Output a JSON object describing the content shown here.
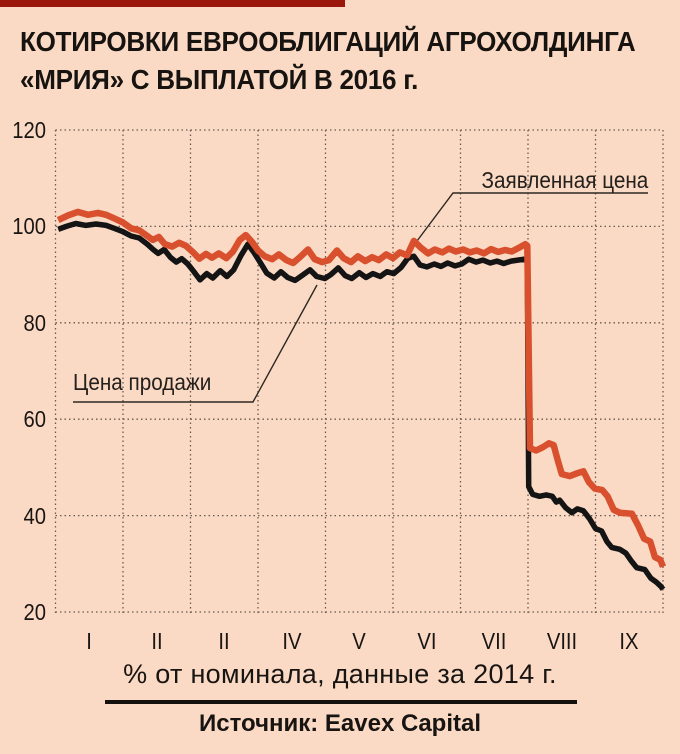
{
  "page": {
    "background_color": "#fbdac5",
    "accent_stripe_color": "#9b170c"
  },
  "header": {
    "title_lines": [
      "КОТИРОВКИ ЕВРООБЛИГАЦИЙ АГРОХОЛДИНГА",
      "«МРИЯ» С ВЫПЛАТОЙ В 2016 г."
    ]
  },
  "chart_data": {
    "type": "line",
    "title": "КОТИРОВКИ ЕВРООБЛИГАЦИЙ АГРОХОЛДИНГА «МРИЯ» С ВЫПЛАТОЙ В 2016 г.",
    "xlabel": "",
    "ylabel": "% от номинала",
    "ylim": [
      20,
      120
    ],
    "yticks": [
      120,
      100,
      80,
      60,
      40,
      20
    ],
    "xticks": [
      "I",
      "II",
      "II",
      "IV",
      "V",
      "VI",
      "VII",
      "VIII",
      "IX"
    ],
    "grid": "dotted",
    "legend_position": "inline-callouts",
    "series": [
      {
        "name": "Заявленная цена",
        "color": "#d8502d",
        "points": [
          [
            1.04,
            101.3
          ],
          [
            1.19,
            102.3
          ],
          [
            1.33,
            103.0
          ],
          [
            1.48,
            102.4
          ],
          [
            1.63,
            102.8
          ],
          [
            1.75,
            102.4
          ],
          [
            1.88,
            101.6
          ],
          [
            2.0,
            100.8
          ],
          [
            2.12,
            99.6
          ],
          [
            2.24,
            99.2
          ],
          [
            2.36,
            98.0
          ],
          [
            2.44,
            97.2
          ],
          [
            2.53,
            97.8
          ],
          [
            2.62,
            96.3
          ],
          [
            2.73,
            95.8
          ],
          [
            2.83,
            96.6
          ],
          [
            2.93,
            96.0
          ],
          [
            3.04,
            94.6
          ],
          [
            3.13,
            93.3
          ],
          [
            3.23,
            94.3
          ],
          [
            3.32,
            93.5
          ],
          [
            3.42,
            94.4
          ],
          [
            3.53,
            93.4
          ],
          [
            3.63,
            94.8
          ],
          [
            3.73,
            97.2
          ],
          [
            3.82,
            98.2
          ],
          [
            3.91,
            96.8
          ],
          [
            4.0,
            95.0
          ],
          [
            4.1,
            93.8
          ],
          [
            4.21,
            93.2
          ],
          [
            4.31,
            94.2
          ],
          [
            4.42,
            93.0
          ],
          [
            4.52,
            92.4
          ],
          [
            4.62,
            93.6
          ],
          [
            4.74,
            95.2
          ],
          [
            4.84,
            93.2
          ],
          [
            4.95,
            92.6
          ],
          [
            5.05,
            93.0
          ],
          [
            5.17,
            95.0
          ],
          [
            5.27,
            93.4
          ],
          [
            5.38,
            92.6
          ],
          [
            5.48,
            93.8
          ],
          [
            5.59,
            92.8
          ],
          [
            5.69,
            93.6
          ],
          [
            5.79,
            93.0
          ],
          [
            5.9,
            94.2
          ],
          [
            6.0,
            93.4
          ],
          [
            6.1,
            94.6
          ],
          [
            6.21,
            94.0
          ],
          [
            6.31,
            97.0
          ],
          [
            6.41,
            95.6
          ],
          [
            6.52,
            94.4
          ],
          [
            6.62,
            95.2
          ],
          [
            6.73,
            94.6
          ],
          [
            6.83,
            95.4
          ],
          [
            6.93,
            94.8
          ],
          [
            7.04,
            95.2
          ],
          [
            7.14,
            94.6
          ],
          [
            7.24,
            95.0
          ],
          [
            7.35,
            94.4
          ],
          [
            7.45,
            95.3
          ],
          [
            7.56,
            94.7
          ],
          [
            7.66,
            95.1
          ],
          [
            7.76,
            94.8
          ],
          [
            7.87,
            95.6
          ],
          [
            7.96,
            96.3
          ],
          [
            7.99,
            96.0
          ],
          [
            8.03,
            54.0
          ],
          [
            8.12,
            53.5
          ],
          [
            8.22,
            54.2
          ],
          [
            8.31,
            55.0
          ],
          [
            8.38,
            54.6
          ],
          [
            8.44,
            51.5
          ],
          [
            8.5,
            48.6
          ],
          [
            8.62,
            48.2
          ],
          [
            8.73,
            48.8
          ],
          [
            8.82,
            49.2
          ],
          [
            8.9,
            47.0
          ],
          [
            8.99,
            45.6
          ],
          [
            9.1,
            45.3
          ],
          [
            9.18,
            44.0
          ],
          [
            9.27,
            41.2
          ],
          [
            9.36,
            40.6
          ],
          [
            9.54,
            40.4
          ],
          [
            9.63,
            38.0
          ],
          [
            9.72,
            35.2
          ],
          [
            9.81,
            34.6
          ],
          [
            9.88,
            31.4
          ],
          [
            9.96,
            30.8
          ],
          [
            10.0,
            29.4
          ]
        ]
      },
      {
        "name": "Цена продажи",
        "color": "#141414",
        "points": [
          [
            1.04,
            99.4
          ],
          [
            1.16,
            100.0
          ],
          [
            1.3,
            100.6
          ],
          [
            1.45,
            100.2
          ],
          [
            1.6,
            100.5
          ],
          [
            1.75,
            100.2
          ],
          [
            1.87,
            99.6
          ],
          [
            2.0,
            98.9
          ],
          [
            2.12,
            98.0
          ],
          [
            2.24,
            97.6
          ],
          [
            2.36,
            96.3
          ],
          [
            2.44,
            95.3
          ],
          [
            2.52,
            94.4
          ],
          [
            2.61,
            95.2
          ],
          [
            2.7,
            93.6
          ],
          [
            2.79,
            92.6
          ],
          [
            2.87,
            93.3
          ],
          [
            2.96,
            92.2
          ],
          [
            3.05,
            90.6
          ],
          [
            3.14,
            88.9
          ],
          [
            3.24,
            90.2
          ],
          [
            3.33,
            89.3
          ],
          [
            3.44,
            90.8
          ],
          [
            3.54,
            89.6
          ],
          [
            3.64,
            91.0
          ],
          [
            3.75,
            94.0
          ],
          [
            3.85,
            96.3
          ],
          [
            3.94,
            94.6
          ],
          [
            4.03,
            92.6
          ],
          [
            4.13,
            90.3
          ],
          [
            4.24,
            89.3
          ],
          [
            4.34,
            90.6
          ],
          [
            4.44,
            89.4
          ],
          [
            4.55,
            88.8
          ],
          [
            4.65,
            89.8
          ],
          [
            4.77,
            91.0
          ],
          [
            4.87,
            89.6
          ],
          [
            4.99,
            89.2
          ],
          [
            5.08,
            90.0
          ],
          [
            5.19,
            91.4
          ],
          [
            5.29,
            89.8
          ],
          [
            5.39,
            89.2
          ],
          [
            5.5,
            90.4
          ],
          [
            5.6,
            89.4
          ],
          [
            5.7,
            90.2
          ],
          [
            5.81,
            89.6
          ],
          [
            5.91,
            90.6
          ],
          [
            6.01,
            90.2
          ],
          [
            6.12,
            91.5
          ],
          [
            6.22,
            93.4
          ],
          [
            6.31,
            93.8
          ],
          [
            6.4,
            92.0
          ],
          [
            6.5,
            91.6
          ],
          [
            6.61,
            92.2
          ],
          [
            6.71,
            91.7
          ],
          [
            6.81,
            92.4
          ],
          [
            6.92,
            91.8
          ],
          [
            7.02,
            92.2
          ],
          [
            7.12,
            93.2
          ],
          [
            7.23,
            92.6
          ],
          [
            7.33,
            93.0
          ],
          [
            7.44,
            92.4
          ],
          [
            7.54,
            92.8
          ],
          [
            7.64,
            92.3
          ],
          [
            7.75,
            92.8
          ],
          [
            7.85,
            93.0
          ],
          [
            7.94,
            93.2
          ],
          [
            7.99,
            92.8
          ],
          [
            8.01,
            46.0
          ],
          [
            8.07,
            44.4
          ],
          [
            8.17,
            44.0
          ],
          [
            8.27,
            44.3
          ],
          [
            8.36,
            44.0
          ],
          [
            8.42,
            42.8
          ],
          [
            8.47,
            43.2
          ],
          [
            8.56,
            41.6
          ],
          [
            8.65,
            40.6
          ],
          [
            8.73,
            41.4
          ],
          [
            8.82,
            41.0
          ],
          [
            8.91,
            39.4
          ],
          [
            9.0,
            37.3
          ],
          [
            9.09,
            36.8
          ],
          [
            9.17,
            34.6
          ],
          [
            9.24,
            33.4
          ],
          [
            9.36,
            33.0
          ],
          [
            9.45,
            32.2
          ],
          [
            9.53,
            30.6
          ],
          [
            9.61,
            29.2
          ],
          [
            9.73,
            28.8
          ],
          [
            9.82,
            27.0
          ],
          [
            9.9,
            26.2
          ],
          [
            9.97,
            25.3
          ],
          [
            10.0,
            24.7
          ]
        ]
      }
    ],
    "annotations": [
      {
        "text": "Заявленная цена",
        "points_to_series": "Заявленная цена"
      },
      {
        "text": "Цена продажи",
        "points_to_series": "Цена продажи"
      }
    ]
  },
  "footer": {
    "caption": "% от номинала, данные за 2014 г.",
    "source": "Источник: Eavex Capital"
  }
}
